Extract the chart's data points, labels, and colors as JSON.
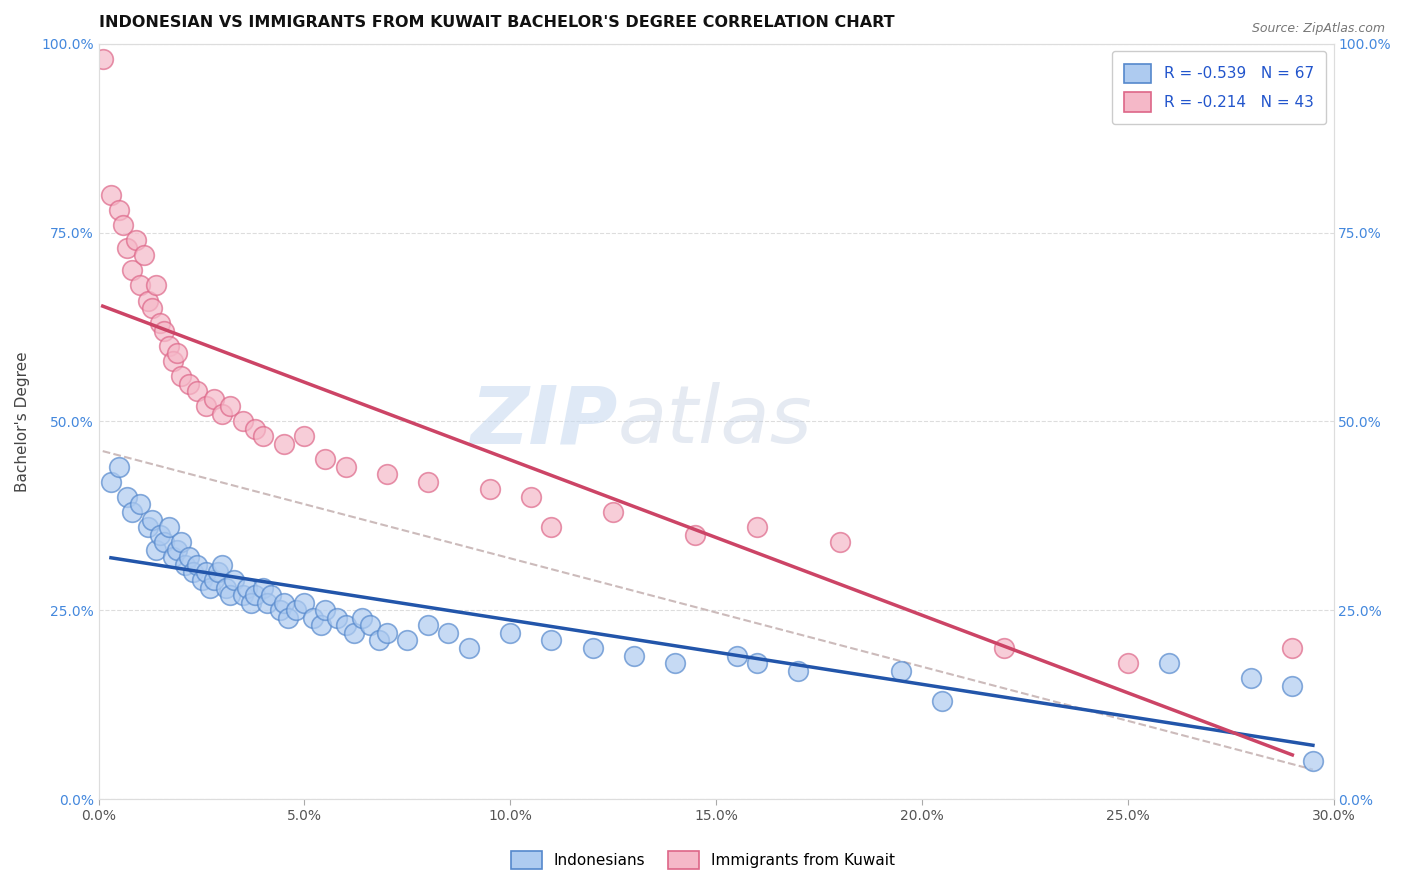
{
  "title": "INDONESIAN VS IMMIGRANTS FROM KUWAIT BACHELOR'S DEGREE CORRELATION CHART",
  "source": "Source: ZipAtlas.com",
  "xlabel_vals": [
    0.0,
    5.0,
    10.0,
    15.0,
    20.0,
    25.0,
    30.0
  ],
  "ylabel_vals": [
    0.0,
    25.0,
    50.0,
    75.0,
    100.0
  ],
  "xlim": [
    0.0,
    30.0
  ],
  "ylim": [
    0.0,
    100.0
  ],
  "ylabel": "Bachelor's Degree",
  "watermark_zip": "ZIP",
  "watermark_atlas": "atlas",
  "legend_blue_label": "Indonesians",
  "legend_pink_label": "Immigrants from Kuwait",
  "R_blue": -0.539,
  "N_blue": 67,
  "R_pink": -0.214,
  "N_pink": 43,
  "blue_color": "#aecbf0",
  "pink_color": "#f5b8c8",
  "blue_edge_color": "#5588cc",
  "pink_edge_color": "#dd6688",
  "blue_line_color": "#2255aa",
  "pink_line_color": "#cc4466",
  "dashed_line_color": "#ccbbbb",
  "blue_scatter_x": [
    0.3,
    0.5,
    0.7,
    0.8,
    1.0,
    1.2,
    1.3,
    1.4,
    1.5,
    1.6,
    1.7,
    1.8,
    1.9,
    2.0,
    2.1,
    2.2,
    2.3,
    2.4,
    2.5,
    2.6,
    2.7,
    2.8,
    2.9,
    3.0,
    3.1,
    3.2,
    3.3,
    3.5,
    3.6,
    3.7,
    3.8,
    4.0,
    4.1,
    4.2,
    4.4,
    4.5,
    4.6,
    4.8,
    5.0,
    5.2,
    5.4,
    5.5,
    5.8,
    6.0,
    6.2,
    6.4,
    6.6,
    6.8,
    7.0,
    7.5,
    8.0,
    8.5,
    9.0,
    10.0,
    11.0,
    12.0,
    13.0,
    14.0,
    15.5,
    16.0,
    17.0,
    19.5,
    20.5,
    26.0,
    28.0,
    29.0,
    29.5
  ],
  "blue_scatter_y": [
    42.0,
    44.0,
    40.0,
    38.0,
    39.0,
    36.0,
    37.0,
    33.0,
    35.0,
    34.0,
    36.0,
    32.0,
    33.0,
    34.0,
    31.0,
    32.0,
    30.0,
    31.0,
    29.0,
    30.0,
    28.0,
    29.0,
    30.0,
    31.0,
    28.0,
    27.0,
    29.0,
    27.0,
    28.0,
    26.0,
    27.0,
    28.0,
    26.0,
    27.0,
    25.0,
    26.0,
    24.0,
    25.0,
    26.0,
    24.0,
    23.0,
    25.0,
    24.0,
    23.0,
    22.0,
    24.0,
    23.0,
    21.0,
    22.0,
    21.0,
    23.0,
    22.0,
    20.0,
    22.0,
    21.0,
    20.0,
    19.0,
    18.0,
    19.0,
    18.0,
    17.0,
    17.0,
    13.0,
    18.0,
    16.0,
    15.0,
    5.0
  ],
  "pink_scatter_x": [
    0.1,
    0.3,
    0.5,
    0.6,
    0.7,
    0.8,
    0.9,
    1.0,
    1.1,
    1.2,
    1.3,
    1.4,
    1.5,
    1.6,
    1.7,
    1.8,
    1.9,
    2.0,
    2.2,
    2.4,
    2.6,
    2.8,
    3.0,
    3.2,
    3.5,
    3.8,
    4.0,
    4.5,
    5.0,
    5.5,
    6.0,
    7.0,
    8.0,
    9.5,
    10.5,
    11.0,
    12.5,
    14.5,
    16.0,
    18.0,
    22.0,
    25.0,
    29.0
  ],
  "pink_scatter_y": [
    98.0,
    80.0,
    78.0,
    76.0,
    73.0,
    70.0,
    74.0,
    68.0,
    72.0,
    66.0,
    65.0,
    68.0,
    63.0,
    62.0,
    60.0,
    58.0,
    59.0,
    56.0,
    55.0,
    54.0,
    52.0,
    53.0,
    51.0,
    52.0,
    50.0,
    49.0,
    48.0,
    47.0,
    48.0,
    45.0,
    44.0,
    43.0,
    42.0,
    41.0,
    40.0,
    36.0,
    38.0,
    35.0,
    36.0,
    34.0,
    20.0,
    18.0,
    20.0
  ],
  "title_fontsize": 11.5,
  "axis_label_fontsize": 11,
  "tick_fontsize": 10,
  "legend_fontsize": 11,
  "source_fontsize": 9
}
